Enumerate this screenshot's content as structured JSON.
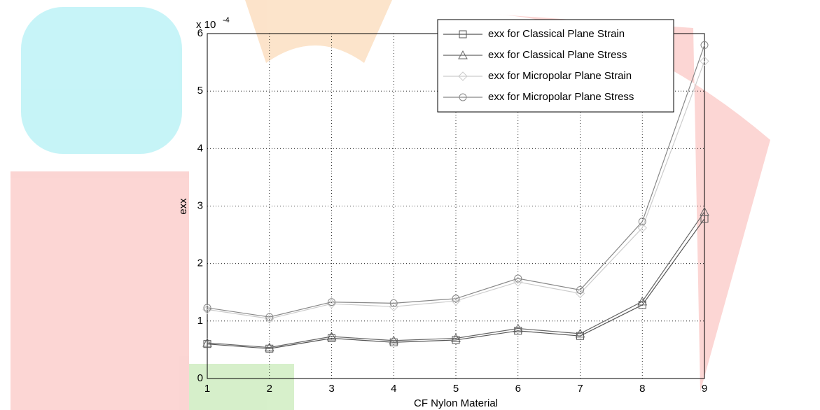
{
  "chart_data": {
    "type": "line",
    "x_label": "CF Nylon Material",
    "y_label": "exx",
    "y_scale_label": {
      "base": "x 10",
      "exponent": "-4"
    },
    "x": [
      1,
      2,
      3,
      4,
      5,
      6,
      7,
      8,
      9
    ],
    "xlim": [
      1,
      9
    ],
    "xticks": [
      1,
      2,
      3,
      4,
      5,
      6,
      7,
      8,
      9
    ],
    "ylim": [
      0,
      6
    ],
    "yticks": [
      0,
      1,
      2,
      3,
      4,
      5,
      6
    ],
    "grid": true,
    "legend": "upper right",
    "series": [
      {
        "name": "exx for Classical Plane Strain",
        "color": "#555555",
        "marker": "square",
        "values": [
          0.6,
          0.52,
          0.7,
          0.63,
          0.67,
          0.83,
          0.74,
          1.28,
          2.78
        ]
      },
      {
        "name": "exx for Classical Plane Stress",
        "color": "#666666",
        "marker": "triangle",
        "values": [
          0.62,
          0.54,
          0.73,
          0.66,
          0.7,
          0.87,
          0.78,
          1.34,
          2.9
        ]
      },
      {
        "name": "exx for Micropolar  Plane Strain",
        "color": "#cccccc",
        "marker": "diamond",
        "values": [
          1.2,
          1.04,
          1.3,
          1.25,
          1.35,
          1.68,
          1.48,
          2.62,
          5.52
        ]
      },
      {
        "name": "exx for Micropolar  Plane Stress",
        "color": "#888888",
        "marker": "circle",
        "values": [
          1.23,
          1.07,
          1.33,
          1.31,
          1.39,
          1.74,
          1.54,
          2.73,
          5.8
        ]
      }
    ]
  }
}
